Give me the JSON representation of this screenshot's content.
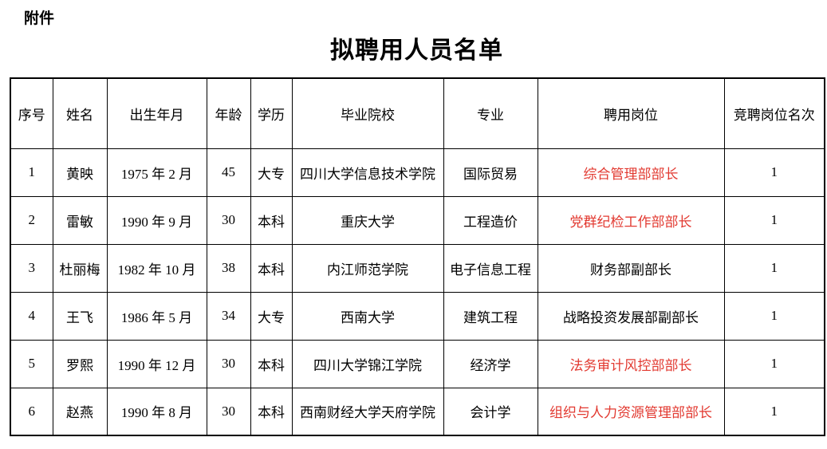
{
  "page": {
    "attachment_label": "附件",
    "title": "拟聘用人员名单"
  },
  "colors": {
    "highlight_red": "#e23930",
    "text": "#000000",
    "border": "#000000"
  },
  "table": {
    "columns": [
      "序号",
      "姓名",
      "出生年月",
      "年龄",
      "学历",
      "毕业院校",
      "专业",
      "聘用岗位",
      "竞聘岗位名次"
    ],
    "rows": [
      {
        "cells": [
          "1",
          "黄映",
          "1975 年 2 月",
          "45",
          "大专",
          "四川大学信息技术学院",
          "国际贸易",
          "综合管理部部长",
          "1"
        ],
        "position_red": true
      },
      {
        "cells": [
          "2",
          "雷敏",
          "1990 年 9 月",
          "30",
          "本科",
          "重庆大学",
          "工程造价",
          "党群纪检工作部部长",
          "1"
        ],
        "position_red": true
      },
      {
        "cells": [
          "3",
          "杜丽梅",
          "1982 年 10 月",
          "38",
          "本科",
          "内江师范学院",
          "电子信息工程",
          "财务部副部长",
          "1"
        ],
        "position_red": false
      },
      {
        "cells": [
          "4",
          "王飞",
          "1986 年 5 月",
          "34",
          "大专",
          "西南大学",
          "建筑工程",
          "战略投资发展部副部长",
          "1"
        ],
        "position_red": false
      },
      {
        "cells": [
          "5",
          "罗熙",
          "1990 年 12 月",
          "30",
          "本科",
          "四川大学锦江学院",
          "经济学",
          "法务审计风控部部长",
          "1"
        ],
        "position_red": true
      },
      {
        "cells": [
          "6",
          "赵燕",
          "1990 年 8 月",
          "30",
          "本科",
          "西南财经大学天府学院",
          "会计学",
          "组织与人力资源管理部部长",
          "1"
        ],
        "position_red": true
      }
    ]
  }
}
